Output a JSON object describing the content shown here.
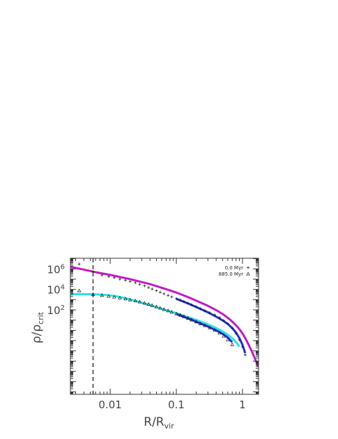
{
  "chart_data": {
    "type": "scatter",
    "xscale": "log",
    "yscale": "log",
    "xlim": [
      0.0025,
      1.75
    ],
    "ylim": [
      5.75e-07,
      11000000
    ],
    "grid": false,
    "legend_position": "top-right",
    "xlabel": {
      "main": "R/R",
      "sub": "vir"
    },
    "ylabel": {
      "main": "ρ/ρ",
      "sub": "crit"
    },
    "xticks": [
      {
        "value": 0.01,
        "label": "0.01"
      },
      {
        "value": 0.1,
        "label": "0.1"
      },
      {
        "value": 1,
        "label": "1"
      }
    ],
    "yticks": [
      {
        "value": 1000000,
        "base": "10",
        "exp": "6"
      },
      {
        "value": 10000,
        "base": "10",
        "exp": "4"
      },
      {
        "value": 100,
        "base": "10",
        "exp": "2"
      }
    ],
    "ytick_printed": [
      "10⁶",
      "10⁴",
      "10²"
    ],
    "vline": {
      "x": 0.0055,
      "style": "dashed"
    },
    "legend": [
      {
        "label": "0.0 Myr",
        "marker": "+"
      },
      {
        "label": "885.0 Myr",
        "marker": "Δ"
      }
    ],
    "series": [
      {
        "marker": "+",
        "color": "#1a1a1a",
        "x": [
          0.0034,
          0.0055,
          0.0075,
          0.0095,
          0.0115,
          0.014,
          0.017,
          0.02,
          0.024,
          0.028,
          0.033,
          0.038,
          0.043,
          0.05,
          0.057,
          0.065,
          0.075,
          0.085,
          0.1,
          0.115,
          0.13,
          0.15,
          0.17,
          0.2,
          0.23,
          0.27,
          0.32,
          0.38,
          0.45,
          0.52,
          0.6,
          0.7,
          0.8,
          0.9,
          1.0,
          1.1
        ],
        "y": [
          3000000,
          500000,
          250000,
          180000,
          140000,
          100000,
          80000,
          60000,
          45000,
          32000,
          22000,
          15000,
          11000,
          7500,
          5200,
          3700,
          2600,
          1900,
          1250,
          880,
          640,
          440,
          310,
          200,
          130,
          82,
          52,
          33,
          18,
          9,
          4.4,
          1.6,
          0.5,
          0.12,
          0.025,
          0.004
        ]
      },
      {
        "marker": "Δ",
        "color": "#1a1a1a",
        "x": [
          0.0034,
          0.0055,
          0.0075,
          0.0095,
          0.0115,
          0.014,
          0.017,
          0.02,
          0.024,
          0.028,
          0.033,
          0.038,
          0.043,
          0.05,
          0.057,
          0.065,
          0.075,
          0.085,
          0.1,
          0.115,
          0.13,
          0.15,
          0.17,
          0.2,
          0.23,
          0.27,
          0.32,
          0.38,
          0.45,
          0.52,
          0.6,
          0.7
        ],
        "y": [
          7500,
          3200,
          2600,
          2100,
          1800,
          1500,
          1200,
          950,
          760,
          600,
          460,
          350,
          270,
          200,
          150,
          110,
          82,
          60,
          42,
          30,
          22,
          15,
          10.5,
          6.8,
          4.5,
          2.9,
          1.8,
          1.05,
          0.55,
          0.28,
          0.12,
          0.04
        ]
      }
    ],
    "fits": [
      {
        "color": "#c21bc2",
        "x": [
          0.0025,
          0.004,
          0.006,
          0.01,
          0.02,
          0.04,
          0.07,
          0.1,
          0.15,
          0.2,
          0.3,
          0.4,
          0.5,
          0.6,
          0.7,
          0.8,
          0.9,
          1.0,
          1.1,
          1.2,
          1.4,
          1.6,
          1.75
        ],
        "y": [
          1600000,
          850000,
          480000,
          260000,
          100000,
          33000,
          10500,
          4900,
          1800,
          800,
          250,
          95,
          40,
          17,
          7.2,
          3.1,
          1.3,
          0.5,
          0.18,
          0.06,
          0.008,
          0.001,
          0.0003
        ]
      },
      {
        "color": "#2fe0e8",
        "x": [
          0.0025,
          0.004,
          0.006,
          0.008,
          0.01,
          0.013,
          0.017,
          0.022,
          0.03,
          0.04,
          0.06,
          0.08,
          0.1,
          0.15,
          0.2,
          0.3,
          0.4,
          0.5,
          0.6,
          0.7,
          0.8,
          0.9
        ],
        "y": [
          3500,
          3450,
          3300,
          3000,
          2600,
          2000,
          1400,
          900,
          500,
          290,
          130,
          74,
          48,
          20,
          10.5,
          3.9,
          1.7,
          0.8,
          0.38,
          0.17,
          0.07,
          0.025
        ]
      },
      {
        "color": "#1f2fd0",
        "x": [
          0.1,
          0.15,
          0.2,
          0.3,
          0.4,
          0.5,
          0.6,
          0.7,
          0.8,
          0.9,
          1.0,
          1.1
        ],
        "y": [
          1200,
          430,
          190,
          58,
          22,
          9.5,
          4.2,
          1.7,
          0.6,
          0.17,
          0.04,
          0.006
        ]
      },
      {
        "color": "#1f2fd0",
        "x": [
          0.1,
          0.15,
          0.2,
          0.3,
          0.4,
          0.5,
          0.6,
          0.7
        ],
        "y": [
          40,
          15,
          7,
          2.4,
          1.0,
          0.46,
          0.2,
          0.07
        ]
      }
    ]
  }
}
